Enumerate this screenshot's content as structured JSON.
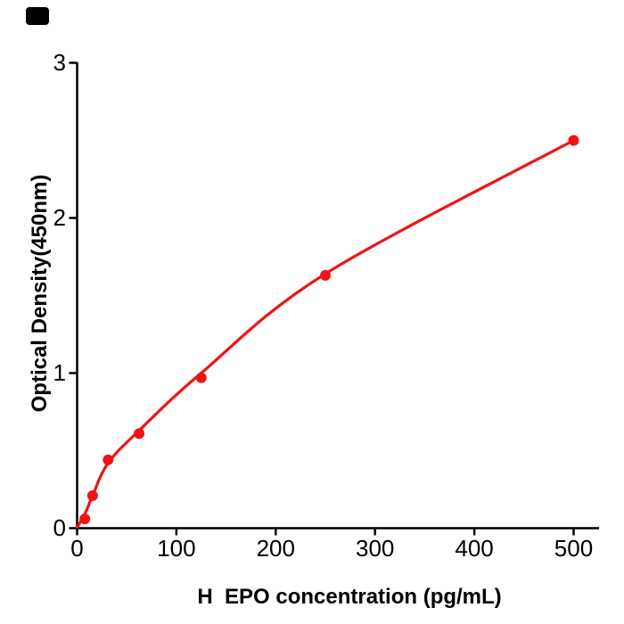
{
  "page": {
    "background": "#ffffff"
  },
  "corner_mark": {
    "color": "#000000"
  },
  "chart_data": {
    "type": "scatter",
    "title": "",
    "xlabel": "H  EPO concentration (pg/mL)",
    "ylabel": "Optical Density(450nm)",
    "x_ticks": [
      0,
      100,
      200,
      300,
      400,
      500
    ],
    "y_ticks": [
      0,
      1,
      2,
      3
    ],
    "xlim": [
      0,
      525
    ],
    "ylim": [
      0,
      3.02
    ],
    "grid": false,
    "legend": "none",
    "axis_color": "#000000",
    "series": [
      {
        "name": "standard-points",
        "type": "scatter",
        "color": "#f01414",
        "points": [
          [
            7.8,
            0.06
          ],
          [
            15.6,
            0.21
          ],
          [
            31.25,
            0.44
          ],
          [
            62.5,
            0.61
          ],
          [
            125,
            0.97
          ],
          [
            250,
            1.63
          ],
          [
            500,
            2.5
          ]
        ]
      },
      {
        "name": "fitted-curve",
        "type": "line",
        "color": "#f01414",
        "points": [
          [
            0,
            0.005
          ],
          [
            7.8,
            0.09
          ],
          [
            15.6,
            0.21
          ],
          [
            31.25,
            0.42
          ],
          [
            62.5,
            0.63
          ],
          [
            125,
            1.0
          ],
          [
            250,
            1.64
          ],
          [
            500,
            2.5
          ]
        ]
      }
    ]
  }
}
